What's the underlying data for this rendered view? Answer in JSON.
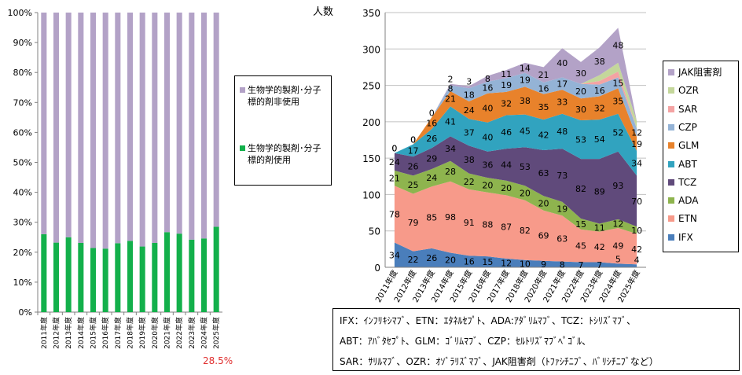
{
  "left_chart": {
    "chart_data": {
      "type": "bar",
      "stacked": "percent",
      "categories": [
        "2011年度",
        "2012年度",
        "2013年度",
        "2014年度",
        "2015年度",
        "2016年度",
        "2017年度",
        "2018年度",
        "2019年度",
        "2020年度",
        "2021年度",
        "2022年度",
        "2023年度",
        "2024年度",
        "2025年度"
      ],
      "series": [
        {
          "name": "生物学的製剤･分子標的剤使用",
          "color": "#13b04b",
          "values": [
            26.0,
            23.2,
            25.0,
            23.1,
            21.4,
            21.2,
            23.0,
            23.8,
            21.9,
            23.1,
            26.7,
            26.2,
            24.2,
            24.6,
            28.5
          ]
        },
        {
          "name": "生物学的製剤･分子標的剤非使用",
          "color": "#b3a2c7",
          "values": [
            74.0,
            76.8,
            75.0,
            76.9,
            78.6,
            78.8,
            77.0,
            76.2,
            78.1,
            76.9,
            73.3,
            73.8,
            75.8,
            75.4,
            71.5
          ]
        }
      ],
      "y_ticks": [
        "0%",
        "10%",
        "20%",
        "30%",
        "40%",
        "50%",
        "60%",
        "70%",
        "80%",
        "90%",
        "100%"
      ],
      "ylim": [
        0,
        100
      ],
      "legend_position": "right",
      "annotation": "28.5%"
    }
  },
  "right_chart": {
    "unit_label": "人数",
    "chart_data": {
      "type": "area",
      "stacked": true,
      "x": [
        "2011年度",
        "2012年度",
        "2013年度",
        "2014年度",
        "2015年度",
        "2016年度",
        "2017年度",
        "2018年度",
        "2020年度",
        "2021年度",
        "2022年度",
        "2023年度",
        "2024年度",
        "2025年度"
      ],
      "series": [
        {
          "name": "IFX",
          "color": "#4a7ebb",
          "values": [
            34,
            22,
            26,
            20,
            16,
            15,
            12,
            10,
            9,
            8,
            7,
            7,
            5,
            4
          ]
        },
        {
          "name": "ETN",
          "color": "#f79a8a",
          "values": [
            78,
            79,
            85,
            98,
            91,
            88,
            87,
            82,
            69,
            63,
            45,
            42,
            49,
            42
          ]
        },
        {
          "name": "ADA",
          "color": "#8eb44e",
          "values": [
            21,
            25,
            24,
            28,
            22,
            20,
            20,
            20,
            20,
            19,
            15,
            11,
            12,
            10
          ]
        },
        {
          "name": "TCZ",
          "color": "#604a7b",
          "values": [
            24,
            26,
            29,
            34,
            38,
            36,
            44,
            53,
            63,
            73,
            82,
            89,
            93,
            70
          ]
        },
        {
          "name": "ABT",
          "color": "#31a3bf",
          "values": [
            0,
            17,
            26,
            41,
            37,
            40,
            46,
            45,
            42,
            48,
            53,
            54,
            52,
            34
          ]
        },
        {
          "name": "GLM",
          "color": "#e8822b",
          "values": [
            0,
            0,
            16,
            21,
            24,
            40,
            32,
            38,
            35,
            33,
            30,
            32,
            35,
            19
          ]
        },
        {
          "name": "CZP",
          "color": "#94b3d6",
          "values": [
            0,
            0,
            0,
            8,
            18,
            16,
            19,
            19,
            16,
            17,
            20,
            16,
            15,
            12
          ]
        },
        {
          "name": "SAR",
          "color": "#f4a3a3",
          "values": [
            0,
            0,
            0,
            0,
            0,
            0,
            0,
            0,
            0,
            0,
            0,
            5,
            8,
            0
          ]
        },
        {
          "name": "OZR",
          "color": "#c4d79b",
          "values": [
            0,
            0,
            0,
            0,
            0,
            0,
            0,
            0,
            0,
            0,
            0,
            8,
            12,
            10
          ]
        },
        {
          "name": "JAK阻害剤",
          "color": "#b3a2c7",
          "values": [
            0,
            0,
            0,
            2,
            3,
            8,
            11,
            14,
            21,
            40,
            30,
            38,
            48,
            0
          ]
        }
      ],
      "data_labels": [
        {
          "series": "IFX",
          "labels": [
            "34",
            "22",
            "26",
            "20",
            "16",
            "15",
            "12",
            "10",
            "9",
            "8",
            "7",
            "7",
            "5",
            "4"
          ]
        },
        {
          "series": "ETN",
          "labels": [
            "78",
            "79",
            "85",
            "98",
            "91",
            "88",
            "87",
            "82",
            "69",
            "63",
            "45",
            "42",
            "49",
            "42"
          ]
        },
        {
          "series": "ADA",
          "labels": [
            "21",
            "25",
            "24",
            "28",
            "22",
            "20",
            "20",
            "20",
            "20",
            "19",
            "15",
            "11",
            "12",
            "10"
          ]
        },
        {
          "series": "TCZ",
          "labels": [
            "24",
            "26",
            "29",
            "34",
            "38",
            "36",
            "44",
            "53",
            "63",
            "73",
            "82",
            "89",
            "93",
            "70"
          ]
        },
        {
          "series": "ABT",
          "labels": [
            "0",
            "17",
            "26",
            "41",
            "37",
            "40",
            "46",
            "45",
            "42",
            "48",
            "53",
            "54",
            "52",
            "34"
          ]
        },
        {
          "series": "GLM",
          "labels": [
            "0",
            "0",
            "16",
            "21",
            "24",
            "40",
            "32",
            "38",
            "35",
            "33",
            "30",
            "32",
            "35",
            "19"
          ]
        },
        {
          "series": "CZP",
          "labels": [
            "",
            "0",
            "0",
            "8",
            "18",
            "16",
            "19",
            "19",
            "16",
            "17",
            "20",
            "16",
            "15",
            "12"
          ]
        },
        {
          "series": "JAK阻害剤",
          "labels": [
            "",
            "",
            "",
            "2",
            "3",
            "8",
            "11",
            "14",
            "21",
            "40",
            "30",
            "38",
            "48",
            ""
          ]
        }
      ],
      "y_ticks": [
        "0",
        "50",
        "100",
        "150",
        "200",
        "250",
        "300",
        "350"
      ],
      "ylim": [
        0,
        350
      ],
      "legend_position": "right"
    }
  },
  "abbreviations": [
    "IFX：ｲﾝﾌﾘｷｼﾏﾌﾞ、ETN：ｴﾀﾈﾙｾﾌﾟﾄ、ADA:ｱﾀﾞﾘﾑﾏﾌﾞ、TCZ：ﾄｼﾘｽﾞﾏﾌﾞ、",
    "ABT：ｱﾊﾞﾀｾﾌﾟﾄ、GLM：ｺﾞﾘﾑﾏﾌﾞ、CZP：ｾﾙﾄﾘｽﾞﾏﾌﾞﾍﾟｺﾞﾙ、",
    "SAR：ｻﾘﾙﾏﾌﾞ、OZR：ｵｿﾞﾗﾘｽﾞﾏﾌﾞ、JAK阻害剤（ﾄﾌｧｼﾁﾆﾌﾞ、ﾊﾞﾘｼﾁﾆﾌﾞなど）"
  ]
}
